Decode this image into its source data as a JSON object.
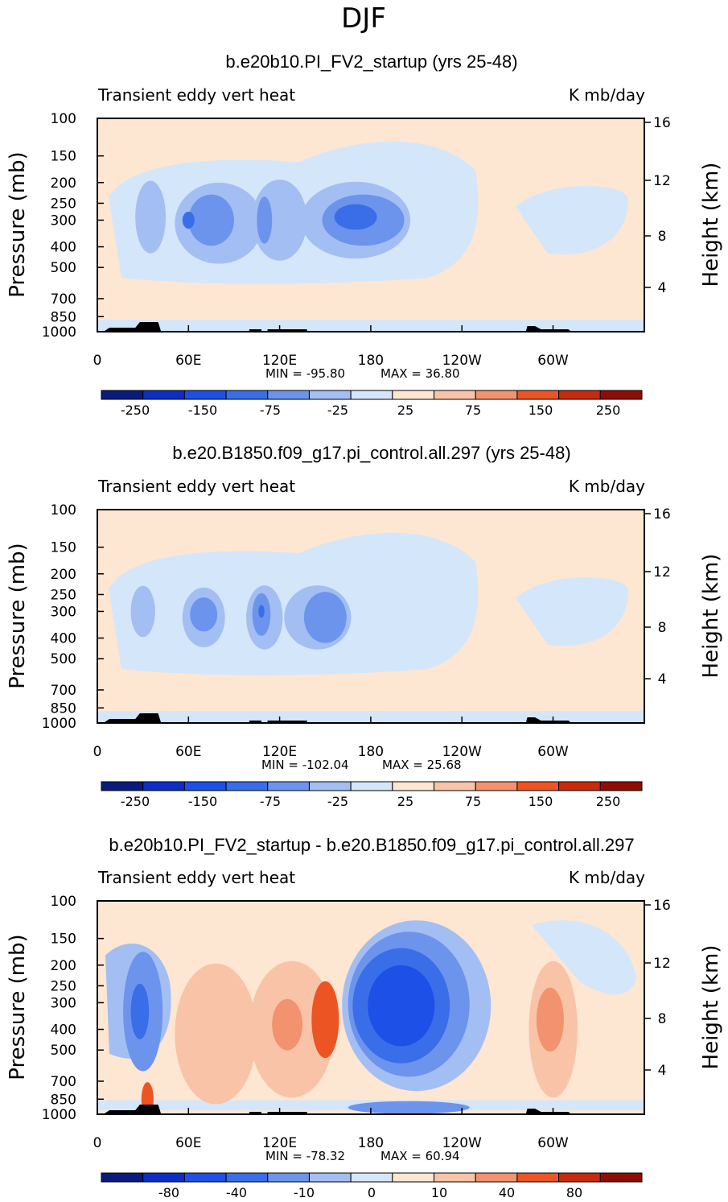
{
  "figure": {
    "season": "DJF"
  },
  "colorbar_colors": [
    "#0a1b7e",
    "#0d2ec6",
    "#1d50e6",
    "#3a6ee8",
    "#6c94ec",
    "#a3bef2",
    "#d4e6fa",
    "#fde6d2",
    "#f8c3a6",
    "#f2926e",
    "#ed5424",
    "#c92a0c",
    "#8e0e04"
  ],
  "chart_data": [
    {
      "type": "heatmap",
      "title": "b.e20b10.PI_FV2_startup (yrs 25-48)",
      "left_label": "Transient eddy vert heat",
      "right_label": "K mb/day",
      "ylabel": "Pressure (mb)",
      "y2label": "Height (km)",
      "x_ticks": [
        "0",
        "60E",
        "120E",
        "180",
        "120W",
        "60W"
      ],
      "y_ticks": [
        "100",
        "150",
        "200",
        "250",
        "300",
        "400",
        "500",
        "700",
        "850",
        "1000"
      ],
      "y2_ticks": [
        "16",
        "12",
        "8",
        "4"
      ],
      "min_label": "MIN = -95.80",
      "max_label": "MAX = 36.80",
      "colorbar_labels": [
        "-250",
        "-150",
        "-75",
        "-25",
        "25",
        "75",
        "150",
        "250"
      ],
      "blobs": [
        {
          "lon": 35,
          "p": 290,
          "rlon": 10,
          "rlog": 0.17,
          "level": 1
        },
        {
          "lon": 80,
          "p": 310,
          "rlon": 29,
          "rlog": 0.19,
          "level": 1
        },
        {
          "lon": 170,
          "p": 300,
          "rlon": 36,
          "rlog": 0.18,
          "level": 1
        },
        {
          "lon": 120,
          "p": 300,
          "rlon": 18,
          "rlog": 0.19,
          "level": 1
        },
        {
          "lon": 75,
          "p": 300,
          "rlon": 15,
          "rlog": 0.12,
          "level": 2
        },
        {
          "lon": 110,
          "p": 300,
          "rlon": 5,
          "rlog": 0.11,
          "level": 2
        },
        {
          "lon": 175,
          "p": 300,
          "rlon": 27,
          "rlog": 0.12,
          "level": 2
        },
        {
          "lon": 60,
          "p": 300,
          "rlon": 4,
          "rlog": 0.04,
          "level": 3
        },
        {
          "lon": 170,
          "p": 290,
          "rlon": 14,
          "rlog": 0.06,
          "level": 3
        }
      ]
    },
    {
      "type": "heatmap",
      "title": "b.e20.B1850.f09_g17.pi_control.all.297 (yrs 25-48)",
      "left_label": "Transient eddy vert heat",
      "right_label": "K mb/day",
      "ylabel": "Pressure (mb)",
      "y2label": "Height (km)",
      "x_ticks": [
        "0",
        "60E",
        "120E",
        "180",
        "120W",
        "60W"
      ],
      "y_ticks": [
        "100",
        "150",
        "200",
        "250",
        "300",
        "400",
        "500",
        "700",
        "850",
        "1000"
      ],
      "y2_ticks": [
        "16",
        "12",
        "8",
        "4"
      ],
      "min_label": "MIN = -102.04",
      "max_label": "MAX = 25.68",
      "colorbar_labels": [
        "-250",
        "-150",
        "-75",
        "-25",
        "25",
        "75",
        "150",
        "250"
      ],
      "blobs": [
        {
          "lon": 30,
          "p": 300,
          "rlon": 8,
          "rlog": 0.12,
          "level": 1
        },
        {
          "lon": 70,
          "p": 320,
          "rlon": 14,
          "rlog": 0.14,
          "level": 1
        },
        {
          "lon": 110,
          "p": 320,
          "rlon": 12,
          "rlog": 0.15,
          "level": 1
        },
        {
          "lon": 145,
          "p": 320,
          "rlon": 22,
          "rlog": 0.15,
          "level": 1
        },
        {
          "lon": 70,
          "p": 310,
          "rlon": 9,
          "rlog": 0.08,
          "level": 2
        },
        {
          "lon": 108,
          "p": 310,
          "rlon": 6,
          "rlog": 0.1,
          "level": 2
        },
        {
          "lon": 150,
          "p": 320,
          "rlon": 14,
          "rlog": 0.12,
          "level": 2
        },
        {
          "lon": 108,
          "p": 300,
          "rlon": 2,
          "rlog": 0.03,
          "level": 3
        }
      ]
    },
    {
      "type": "heatmap",
      "title": "b.e20b10.PI_FV2_startup - b.e20.B1850.f09_g17.pi_control.all.297",
      "left_label": "Transient eddy vert heat",
      "right_label": "K mb/day",
      "ylabel": "Pressure (mb)",
      "y2label": "Height (km)",
      "x_ticks": [
        "0",
        "60E",
        "120E",
        "180",
        "120W",
        "60W"
      ],
      "y_ticks": [
        "100",
        "150",
        "200",
        "250",
        "300",
        "400",
        "500",
        "700",
        "850",
        "1000"
      ],
      "y2_ticks": [
        "16",
        "12",
        "8",
        "4"
      ],
      "min_label": "MIN = -78.32",
      "max_label": "MAX = 60.94",
      "colorbar_labels": [
        "-80",
        "-40",
        "-10",
        "0",
        "10",
        "40",
        "80"
      ],
      "blobs": [
        {
          "lon": 30,
          "p": 330,
          "rlon": 13,
          "rlog": 0.28,
          "level": -2
        },
        {
          "lon": 28,
          "p": 330,
          "rlon": 6,
          "rlog": 0.13,
          "level": -3
        },
        {
          "lon": 78,
          "p": 420,
          "rlon": 27,
          "rlog": 0.33,
          "level": 1
        },
        {
          "lon": 128,
          "p": 400,
          "rlon": 28,
          "rlog": 0.32,
          "level": 1
        },
        {
          "lon": 125,
          "p": 380,
          "rlon": 10,
          "rlog": 0.12,
          "level": 2
        },
        {
          "lon": 150,
          "p": 360,
          "rlon": 9,
          "rlog": 0.18,
          "level": 3
        },
        {
          "lon": 210,
          "p": 310,
          "rlon": 49,
          "rlog": 0.4,
          "level": -1
        },
        {
          "lon": 205,
          "p": 305,
          "rlon": 40,
          "rlog": 0.34,
          "level": -2
        },
        {
          "lon": 200,
          "p": 310,
          "rlon": 32,
          "rlog": 0.27,
          "level": -3
        },
        {
          "lon": 200,
          "p": 310,
          "rlon": 22,
          "rlog": 0.19,
          "level": -4
        },
        {
          "lon": 300,
          "p": 400,
          "rlon": 16,
          "rlog": 0.32,
          "level": 1
        },
        {
          "lon": 298,
          "p": 360,
          "rlon": 9,
          "rlog": 0.15,
          "level": 2
        },
        {
          "lon": 205,
          "p": 930,
          "rlon": 40,
          "rlog": 0.03,
          "level": -2
        },
        {
          "lon": 33,
          "p": 850,
          "rlon": 4,
          "rlog": 0.08,
          "level": 3
        }
      ]
    }
  ]
}
